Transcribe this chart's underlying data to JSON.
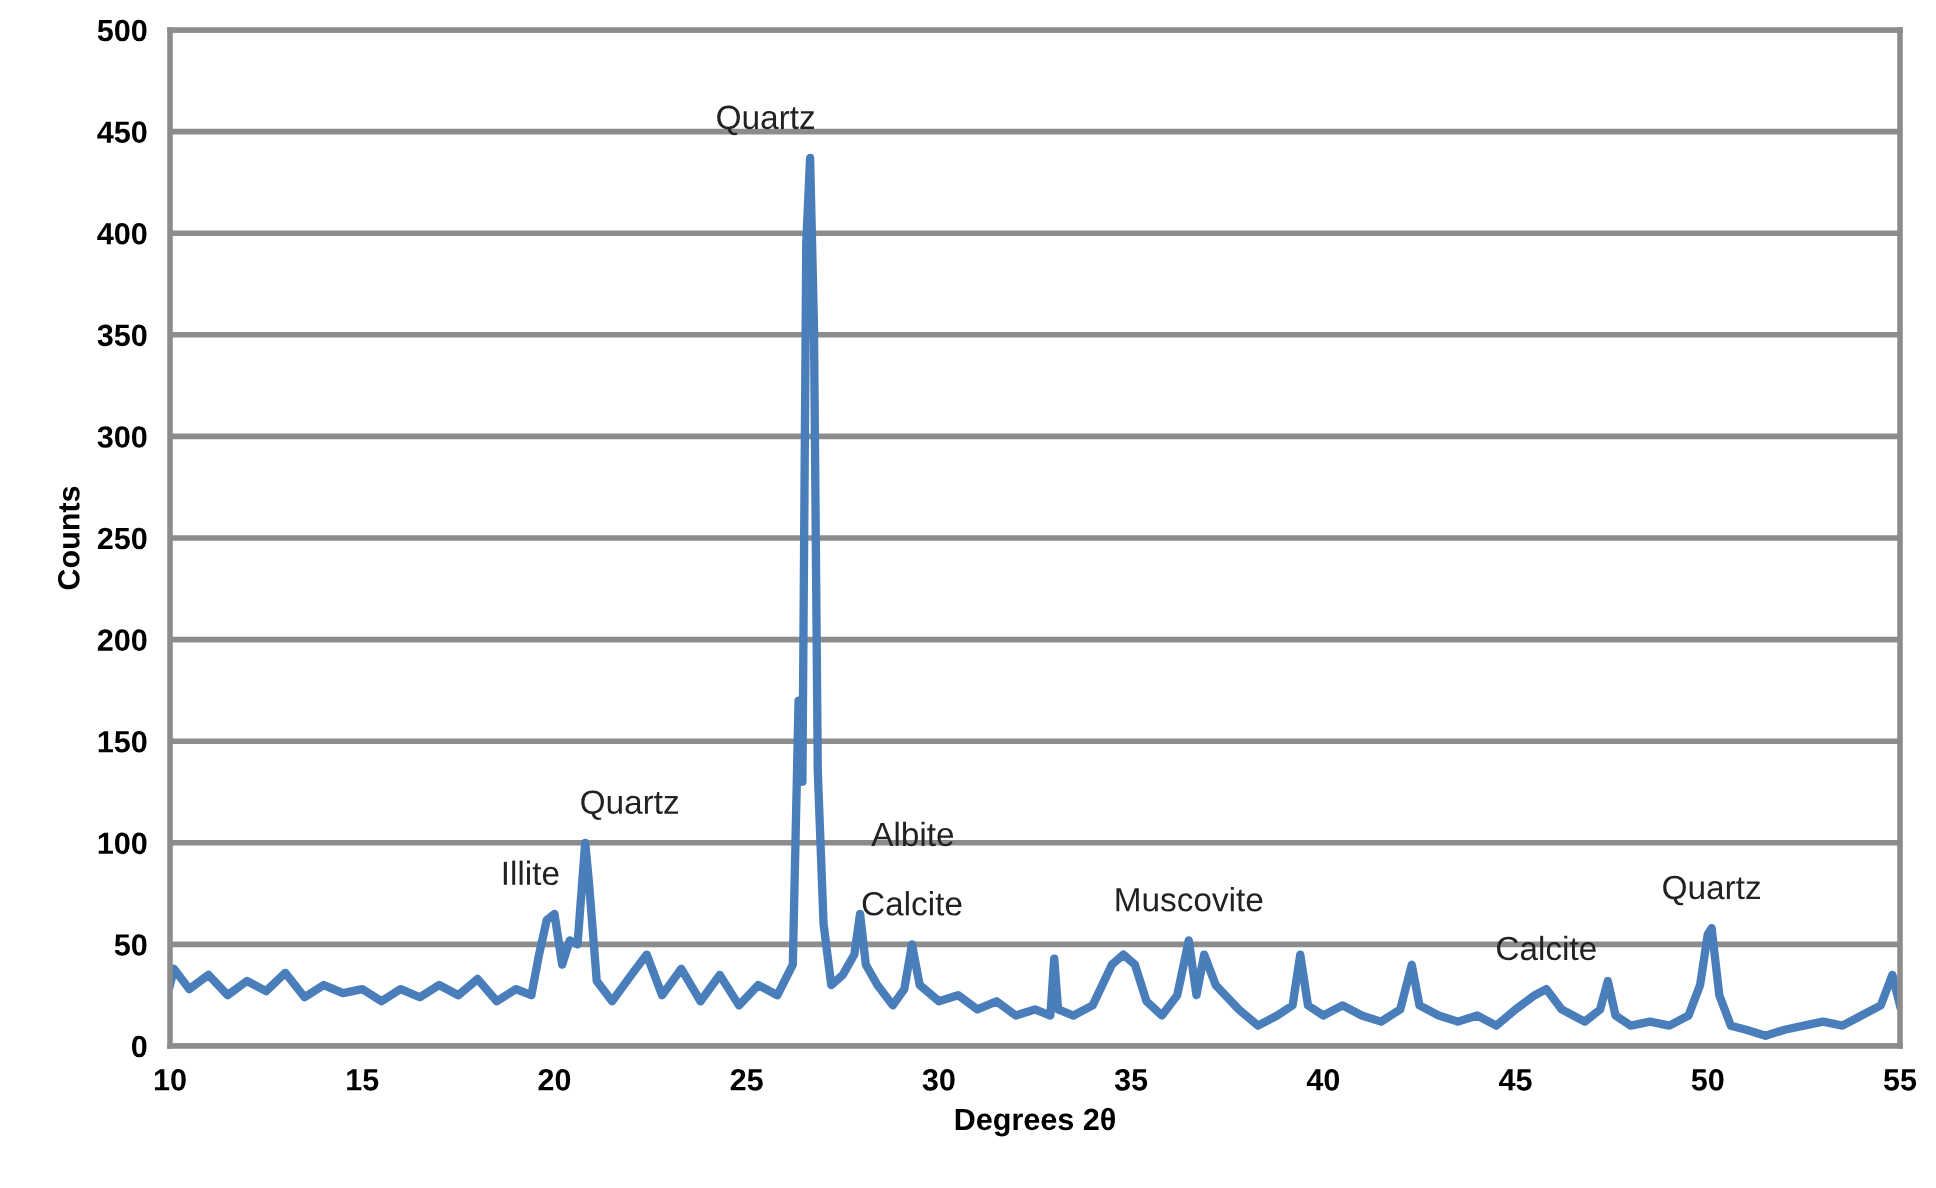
{
  "chart_data": {
    "type": "line",
    "xlabel": "Degrees 2θ",
    "ylabel": "Counts",
    "xlim": [
      10,
      55
    ],
    "xticks": [
      10,
      15,
      20,
      25,
      30,
      35,
      40,
      45,
      50,
      55
    ],
    "ylim": [
      0,
      500
    ],
    "yticks": [
      0,
      50,
      100,
      150,
      200,
      250,
      300,
      350,
      400,
      450,
      500
    ],
    "grid": "y",
    "series": [
      {
        "color": "#4a7ebb",
        "x": [
          10,
          10.1,
          10.5,
          11,
          11.5,
          12,
          12.5,
          13,
          13.5,
          14,
          14.5,
          15,
          15.5,
          16,
          16.5,
          17,
          17.5,
          18,
          18.5,
          19,
          19.4,
          19.6,
          19.8,
          20.0,
          20.2,
          20.4,
          20.6,
          20.8,
          20.9,
          21.1,
          21.5,
          22,
          22.4,
          22.8,
          23.3,
          23.8,
          24.3,
          24.8,
          25.3,
          25.8,
          26.2,
          26.35,
          26.45,
          26.55,
          26.65,
          26.75,
          26.85,
          27.0,
          27.2,
          27.5,
          27.8,
          27.95,
          28.1,
          28.4,
          28.8,
          29.1,
          29.3,
          29.5,
          30,
          30.5,
          31,
          31.5,
          32,
          32.5,
          32.9,
          33.0,
          33.1,
          33.5,
          34,
          34.5,
          34.8,
          35.1,
          35.4,
          35.8,
          36.2,
          36.5,
          36.7,
          36.9,
          37.2,
          37.8,
          38.3,
          38.8,
          39.2,
          39.4,
          39.6,
          40,
          40.5,
          41,
          41.5,
          42,
          42.3,
          42.5,
          43,
          43.5,
          44,
          44.5,
          45,
          45.5,
          45.8,
          46.2,
          46.8,
          47.2,
          47.4,
          47.6,
          48,
          48.5,
          49,
          49.5,
          49.8,
          50.0,
          50.1,
          50.3,
          50.6,
          51,
          51.5,
          52,
          52.5,
          53,
          53.5,
          54,
          54.5,
          54.8,
          55
        ],
        "values": [
          30,
          38,
          28,
          35,
          25,
          32,
          27,
          36,
          24,
          30,
          26,
          28,
          22,
          28,
          24,
          30,
          25,
          33,
          22,
          28,
          25,
          45,
          62,
          65,
          40,
          52,
          50,
          100,
          80,
          32,
          22,
          35,
          45,
          25,
          38,
          22,
          35,
          20,
          30,
          25,
          40,
          170,
          130,
          395,
          437,
          355,
          135,
          60,
          30,
          35,
          45,
          65,
          40,
          30,
          20,
          28,
          50,
          30,
          22,
          25,
          18,
          22,
          15,
          18,
          15,
          43,
          18,
          15,
          20,
          40,
          45,
          40,
          22,
          15,
          25,
          52,
          25,
          45,
          30,
          18,
          10,
          15,
          20,
          45,
          20,
          15,
          20,
          15,
          12,
          18,
          40,
          20,
          15,
          12,
          15,
          10,
          18,
          25,
          28,
          18,
          12,
          18,
          32,
          15,
          10,
          12,
          10,
          15,
          30,
          55,
          58,
          25,
          10,
          8,
          5,
          8,
          10,
          12,
          10,
          15,
          20,
          35,
          20
        ]
      }
    ],
    "annotations": [
      {
        "text": "Illite",
        "x": 20.0,
        "y": 65
      },
      {
        "text": "Quartz",
        "x": 20.8,
        "y": 100
      },
      {
        "text": "Quartz",
        "x": 26.65,
        "y": 437
      },
      {
        "text": "Albite",
        "x": 27.95,
        "y": 65
      },
      {
        "text": "Calcite",
        "x": 29.3,
        "y": 50
      },
      {
        "text": "Muscovite",
        "x": 36.5,
        "y": 52
      },
      {
        "text": "Calcite",
        "x": 45.8,
        "y": 28
      },
      {
        "text": "Quartz",
        "x": 50.1,
        "y": 58
      }
    ]
  }
}
